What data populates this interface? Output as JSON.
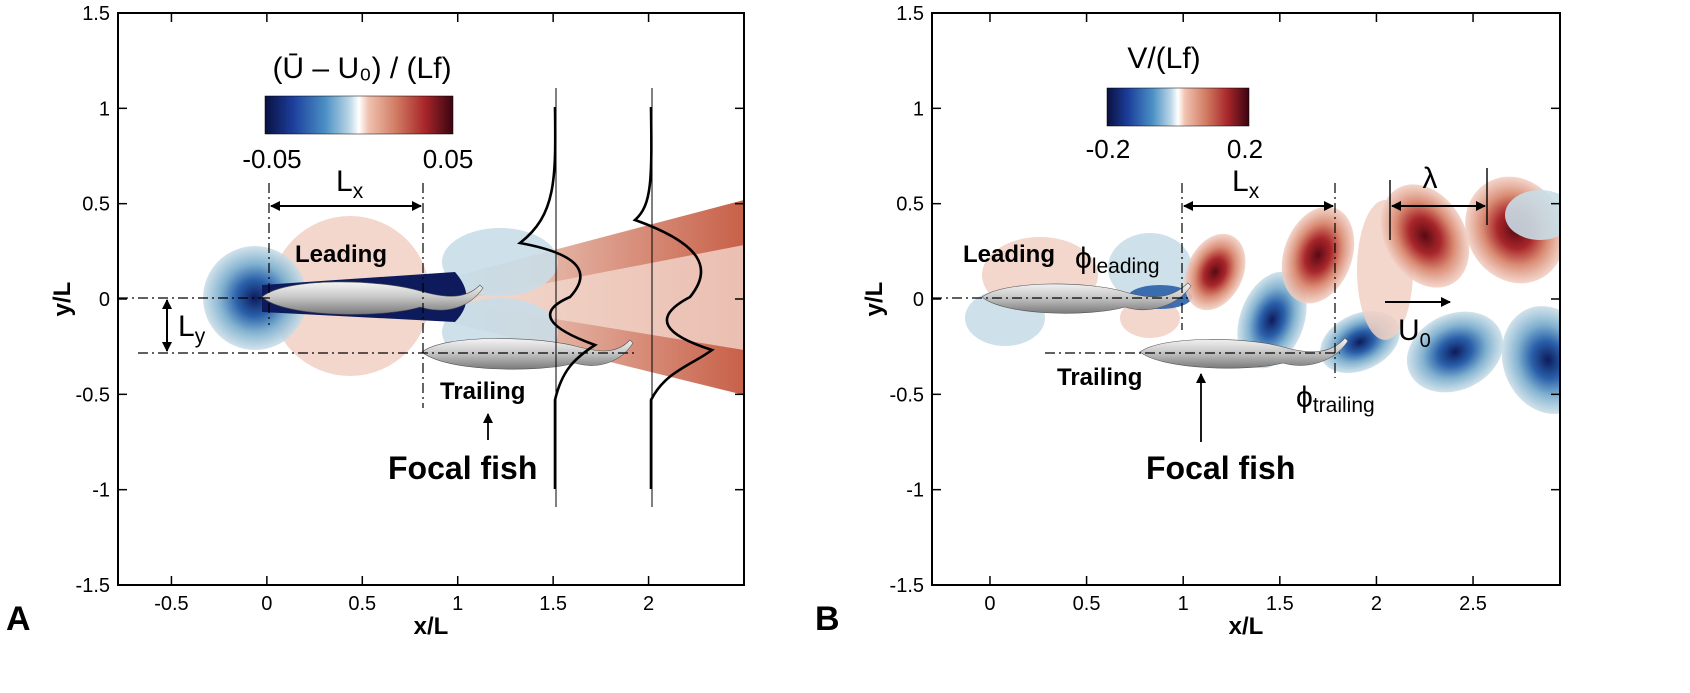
{
  "panels": [
    {
      "id": "A",
      "label": "A",
      "xlabel": "x/L",
      "ylabel": "y/L",
      "xlim": [
        -0.78,
        2.5
      ],
      "ylim": [
        -1.5,
        1.5
      ],
      "xticks": [
        "-0.5",
        "0",
        "0.5",
        "1",
        "1.5",
        "2"
      ],
      "xtick_values": [
        -0.5,
        0,
        0.5,
        1,
        1.5,
        2
      ],
      "yticks": [
        "1.5",
        "1",
        "0.5",
        "0",
        "-0.5",
        "-1",
        "-1.5"
      ],
      "ytick_values": [
        1.5,
        1,
        0.5,
        0,
        -0.5,
        -1,
        -1.5
      ],
      "colorbar": {
        "title": "(Ū – U₀) / (Lf)",
        "min_label": "-0.05",
        "max_label": "0.05",
        "min": -0.05,
        "max": 0.05
      },
      "annotations": {
        "leading": "Leading",
        "trailing": "Trailing",
        "focal": "Focal fish",
        "lx": "Lx",
        "ly": "Ly"
      },
      "geometry": {
        "leading_fish_x": [
          0,
          1.1
        ],
        "leading_fish_y": 0,
        "trailing_fish_x": [
          0.8,
          1.9
        ],
        "trailing_fish_y": -0.3,
        "lx": [
          0,
          0.8
        ],
        "ly": [
          0,
          -0.3
        ],
        "profile_stations": [
          1.5,
          2.0
        ]
      },
      "colors": {
        "deficit": "#0d1b5c",
        "excess": "#b8402f"
      }
    },
    {
      "id": "B",
      "label": "B",
      "xlabel": "x/L",
      "ylabel": "y/L",
      "xlim": [
        -0.3,
        2.95
      ],
      "ylim": [
        -1.5,
        1.5
      ],
      "xticks": [
        "0",
        "0.5",
        "1",
        "1.5",
        "2",
        "2.5"
      ],
      "xtick_values": [
        0,
        0.5,
        1,
        1.5,
        2,
        2.5
      ],
      "yticks": [
        "1.5",
        "1",
        "0.5",
        "0",
        "-0.5",
        "-1",
        "-1.5"
      ],
      "ytick_values": [
        1.5,
        1,
        0.5,
        0,
        -0.5,
        -1,
        -1.5
      ],
      "colorbar": {
        "title": "V/(Lf)",
        "min_label": "-0.2",
        "max_label": "0.2",
        "min": -0.2,
        "max": 0.2
      },
      "annotations": {
        "leading": "Leading",
        "trailing": "Trailing",
        "focal": "Focal fish",
        "lx": "Lx",
        "lambda": "λ",
        "u0": "U0",
        "phi_leading": "ϕleading",
        "phi_trailing": "ϕtrailing"
      },
      "geometry": {
        "leading_fish_x": [
          0,
          1.0
        ],
        "leading_fish_y": 0,
        "trailing_fish_x": [
          0.8,
          1.8
        ],
        "trailing_fish_y": -0.3,
        "lx": [
          1.0,
          1.8
        ],
        "lambda": [
          2.12,
          2.62
        ]
      },
      "colors": {
        "negative": "#1c3f9c",
        "positive": "#8b1a1a"
      }
    }
  ],
  "chart_data": [
    {
      "type": "heatmap",
      "title": "(Ū – U₀) / (Lf)",
      "xlabel": "x/L",
      "ylabel": "y/L",
      "xlim": [
        -0.78,
        2.5
      ],
      "ylim": [
        -1.5,
        1.5
      ],
      "colorbar_range": [
        -0.05,
        0.05
      ],
      "overlaid_profiles": [
        {
          "x_station": 1.5,
          "y_range": [
            -1.0,
            1.0
          ]
        },
        {
          "x_station": 2.0,
          "y_range": [
            -1.0,
            1.0
          ]
        }
      ]
    },
    {
      "type": "heatmap",
      "title": "V/(Lf)",
      "xlabel": "x/L",
      "ylabel": "y/L",
      "xlim": [
        -0.3,
        2.95
      ],
      "ylim": [
        -1.5,
        1.5
      ],
      "colorbar_range": [
        -0.2,
        0.2
      ]
    }
  ]
}
